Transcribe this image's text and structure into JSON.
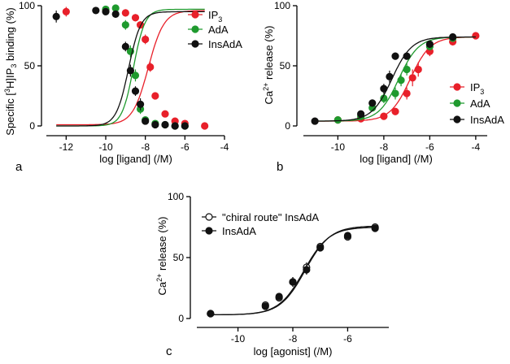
{
  "chart_data": [
    {
      "type": "scatter",
      "panel": "a",
      "xlabel": "log [ligand] (/M)",
      "ylabel_parts": [
        "Specific [",
        "3",
        "H]IP",
        "3",
        " binding (%)"
      ],
      "xlim": [
        -13,
        -4
      ],
      "ylim": [
        0,
        100
      ],
      "xticks": [
        -12,
        -10,
        -8,
        -6,
        -4
      ],
      "xtick_labels": [
        "-12",
        "-10",
        "-8",
        "-6",
        "-4"
      ],
      "yticks": [
        0,
        50,
        100
      ],
      "ytick_labels": [
        "0",
        "50",
        "100"
      ],
      "legend": "top-right",
      "series": [
        {
          "name": "IP3",
          "label_base": "IP",
          "label_sub": "3",
          "color": "#e8202a",
          "filled": true,
          "x": [
            -12,
            -10,
            -9,
            -8.5,
            -8.25,
            -8,
            -7.75,
            -7.5,
            -7,
            -6.5,
            -6,
            -5
          ],
          "y": [
            95,
            96,
            94,
            90,
            84,
            72,
            49,
            25,
            10,
            4,
            2,
            0
          ],
          "err": [
            4,
            2,
            3,
            3,
            3,
            4,
            4,
            3,
            2,
            1,
            1,
            1
          ],
          "fit": {
            "bottom": 1,
            "top": 96,
            "logEC50": -7.85,
            "hill": 1.1
          }
        },
        {
          "name": "AdA",
          "label_base": "AdA",
          "label_sub": "",
          "color": "#1f9a2e",
          "filled": true,
          "x": [
            -10,
            -9.5,
            -9,
            -8.75,
            -8.5,
            -8.25,
            -8,
            -7.5,
            -7,
            -6.5,
            -6
          ],
          "y": [
            97,
            98,
            84,
            62,
            42,
            14,
            5,
            2,
            1,
            0,
            0
          ],
          "err": [
            2,
            2,
            4,
            5,
            5,
            4,
            2,
            1,
            1,
            1,
            1
          ],
          "fit": {
            "bottom": 0,
            "top": 97,
            "logEC50": -8.6,
            "hill": 1.5
          }
        },
        {
          "name": "InsAdA",
          "label_base": "InsAdA",
          "label_sub": "",
          "color": "#111111",
          "filled": true,
          "x": [
            -12.5,
            -10.5,
            -10,
            -9.5,
            -9,
            -8.75,
            -8.5,
            -8.25,
            -8,
            -7.5,
            -7,
            -6.5,
            -6
          ],
          "y": [
            91,
            96,
            95,
            93,
            66,
            46,
            29,
            18,
            4,
            1,
            1,
            0,
            0
          ],
          "err": [
            5,
            2,
            2,
            3,
            4,
            5,
            4,
            5,
            2,
            1,
            1,
            1,
            1
          ],
          "fit": {
            "bottom": 0,
            "top": 95,
            "logEC50": -8.85,
            "hill": 1.4
          }
        }
      ]
    },
    {
      "type": "scatter",
      "panel": "b",
      "xlabel": "log [ligand] (/M)",
      "ylabel_parts": [
        "Ca",
        "2+",
        " release (%)"
      ],
      "xlim": [
        -11.5,
        -3.5
      ],
      "ylim": [
        0,
        100
      ],
      "xticks": [
        -10,
        -8,
        -6,
        -4
      ],
      "xtick_labels": [
        "-10",
        "-8",
        "-6",
        "-4"
      ],
      "yticks": [
        0,
        50,
        100
      ],
      "ytick_labels": [
        "0",
        "50",
        "100"
      ],
      "legend": "bottom-right",
      "series": [
        {
          "name": "IP3",
          "label_base": "IP",
          "label_sub": "3",
          "color": "#e8202a",
          "filled": true,
          "x": [
            -10,
            -9,
            -8,
            -7.5,
            -7,
            -6.75,
            -6.5,
            -6,
            -5,
            -4
          ],
          "y": [
            5,
            6,
            8,
            12,
            27,
            40,
            47,
            62,
            70,
            75
          ],
          "err": [
            1,
            1,
            2,
            3,
            5,
            7,
            6,
            4,
            3,
            2
          ],
          "fit": {
            "bottom": 4,
            "top": 74,
            "logEC50": -6.85,
            "hill": 1.0
          }
        },
        {
          "name": "AdA",
          "label_base": "AdA",
          "label_sub": "",
          "color": "#1f9a2e",
          "filled": true,
          "x": [
            -10,
            -9,
            -8.5,
            -8,
            -7.5,
            -7.25,
            -7,
            -6,
            -5
          ],
          "y": [
            5,
            8,
            15,
            23,
            27,
            38,
            47,
            66,
            73
          ],
          "err": [
            1,
            2,
            3,
            4,
            5,
            5,
            5,
            3,
            2
          ],
          "fit": {
            "bottom": 4,
            "top": 74,
            "logEC50": -7.35,
            "hill": 1.0
          }
        },
        {
          "name": "InsAdA",
          "label_base": "InsAdA",
          "label_sub": "",
          "color": "#111111",
          "filled": true,
          "x": [
            -11,
            -9,
            -8.5,
            -8,
            -7.75,
            -7.5,
            -7,
            -6,
            -5
          ],
          "y": [
            4,
            10,
            19,
            31,
            41,
            58,
            58,
            68,
            74
          ],
          "err": [
            1,
            2,
            3,
            4,
            5,
            3,
            3,
            3,
            2
          ],
          "fit": {
            "bottom": 4,
            "top": 74,
            "logEC50": -7.65,
            "hill": 1.0
          }
        }
      ]
    },
    {
      "type": "scatter",
      "panel": "c",
      "xlabel": "log [agonist] (/M)",
      "ylabel_parts": [
        "Ca",
        "2+",
        " release (%)"
      ],
      "xlim": [
        -11.5,
        -4.5
      ],
      "ylim": [
        0,
        100
      ],
      "xticks": [
        -10,
        -8,
        -6
      ],
      "xtick_labels": [
        "-10",
        "-8",
        "-6"
      ],
      "yticks": [
        0,
        50,
        100
      ],
      "ytick_labels": [
        "0",
        "50",
        "100"
      ],
      "legend": "top-left",
      "series": [
        {
          "name": "\"chiral route\" InsAdA",
          "label_base": "\"chiral route\" InsAdA",
          "label_sub": "",
          "color": "#111111",
          "filled": false,
          "x": [
            -11,
            -9,
            -8.5,
            -8,
            -7.5,
            -7,
            -6,
            -5
          ],
          "y": [
            4,
            11,
            17,
            30,
            42,
            59,
            67,
            75
          ],
          "err": [
            1,
            2,
            3,
            4,
            4,
            3,
            3,
            2
          ],
          "fit": {
            "bottom": 3,
            "top": 76,
            "logEC50": -7.55,
            "hill": 0.95
          }
        },
        {
          "name": "InsAdA",
          "label_base": "InsAdA",
          "label_sub": "",
          "color": "#111111",
          "filled": true,
          "x": [
            -11,
            -9,
            -8.5,
            -8,
            -7.5,
            -7,
            -6,
            -5
          ],
          "y": [
            4,
            10,
            18,
            30,
            40,
            58,
            68,
            74
          ],
          "err": [
            1,
            2,
            3,
            4,
            4,
            3,
            3,
            2
          ],
          "fit": {
            "bottom": 3,
            "top": 75,
            "logEC50": -7.6,
            "hill": 0.95
          }
        }
      ]
    }
  ]
}
